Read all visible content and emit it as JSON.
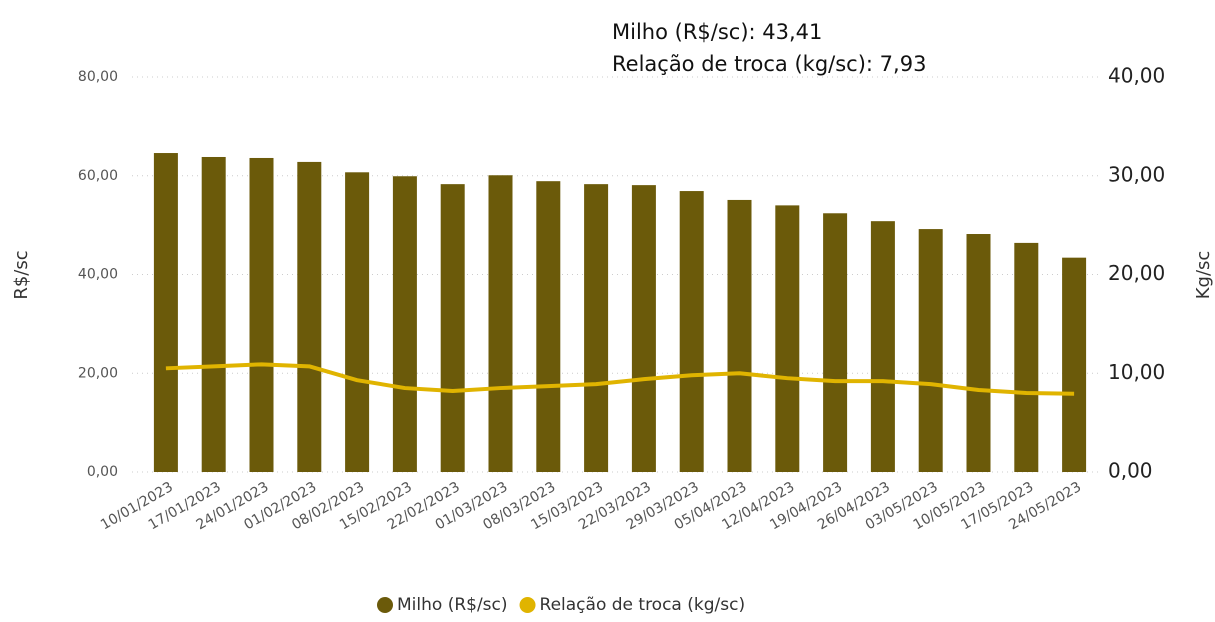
{
  "chart_data": {
    "type": "bar-line",
    "annotations": [
      "Milho (R$/sc): 43,41",
      "Relação de troca (kg/sc): 7,93"
    ],
    "y_label": "R$/sc",
    "y2_label": "Kg/sc",
    "categories": [
      "10/01/2023",
      "17/01/2023",
      "24/01/2023",
      "01/02/2023",
      "08/02/2023",
      "15/02/2023",
      "22/02/2023",
      "01/03/2023",
      "08/03/2023",
      "15/03/2023",
      "22/03/2023",
      "29/03/2023",
      "05/04/2023",
      "12/04/2023",
      "19/04/2023",
      "26/04/2023",
      "03/05/2023",
      "10/05/2023",
      "17/05/2023",
      "24/05/2023"
    ],
    "series": [
      {
        "name": "Milho (R$/sc)",
        "type": "bar",
        "color": "#6b5a0a",
        "values": [
          64.6,
          63.8,
          63.6,
          62.8,
          60.7,
          59.9,
          58.3,
          60.1,
          58.9,
          58.3,
          58.1,
          56.9,
          55.1,
          54.0,
          52.4,
          50.8,
          49.2,
          48.2,
          46.4,
          43.41
        ]
      },
      {
        "name": "Relação de troca (kg/sc)",
        "type": "line",
        "axis": "y2",
        "color": "#e0b400",
        "values": [
          10.5,
          10.7,
          10.9,
          10.7,
          9.3,
          8.5,
          8.2,
          8.5,
          8.7,
          8.9,
          9.4,
          9.8,
          10.0,
          9.5,
          9.2,
          9.2,
          8.9,
          8.3,
          8.0,
          7.93
        ]
      }
    ],
    "ylim": [
      0,
      80
    ],
    "yticks": [
      {
        "value": 0,
        "label": "0,00"
      },
      {
        "value": 20,
        "label": "20,00"
      },
      {
        "value": 40,
        "label": "40,00"
      },
      {
        "value": 60,
        "label": "60,00"
      },
      {
        "value": 80,
        "label": "80,00"
      }
    ],
    "y2lim": [
      0,
      40
    ],
    "y2ticks": [
      {
        "value": 0,
        "label": "0,00"
      },
      {
        "value": 10,
        "label": "10,00"
      },
      {
        "value": 20,
        "label": "20,00"
      },
      {
        "value": 30,
        "label": "30,00"
      },
      {
        "value": 40,
        "label": "40,00"
      }
    ],
    "grid": true
  }
}
